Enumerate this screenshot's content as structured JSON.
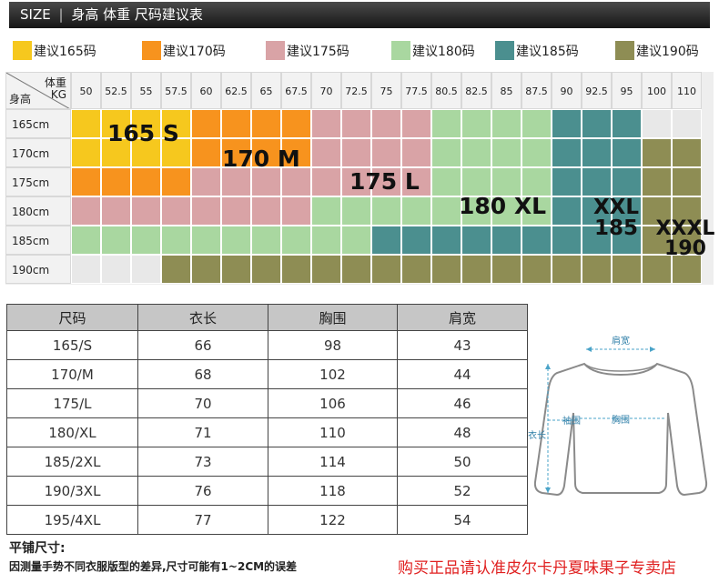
{
  "header": {
    "size_label": "SIZE",
    "separator": "|",
    "title": "身高 体重 尺码建议表"
  },
  "legend": [
    {
      "label": "建议165码",
      "color": "#f6c81e"
    },
    {
      "label": "建议170码",
      "color": "#f7931e"
    },
    {
      "label": "建议175码",
      "color": "#d9a3a6"
    },
    {
      "label": "建议180码",
      "color": "#a9d7a0"
    },
    {
      "label": "建议185码",
      "color": "#4b8f8f"
    },
    {
      "label": "建议190码",
      "color": "#8e8d54"
    }
  ],
  "grid": {
    "corner_weight_label": "体重",
    "corner_weight_unit": "KG",
    "corner_height_label": "身高",
    "weights": [
      "50",
      "52.5",
      "55",
      "57.5",
      "60",
      "62.5",
      "65",
      "67.5",
      "70",
      "72.5",
      "75",
      "77.5",
      "80.5",
      "82.5",
      "85",
      "87.5",
      "90",
      "92.5",
      "95",
      "100",
      "110"
    ],
    "heights": [
      "165cm",
      "170cm",
      "175cm",
      "180cm",
      "185cm",
      "190cm"
    ],
    "empty_color": "#e8e8e8",
    "rows": [
      [
        "165",
        "165",
        "165",
        "165",
        "170",
        "170",
        "170",
        "170",
        "175",
        "175",
        "175",
        "175",
        "180",
        "180",
        "180",
        "180",
        "185",
        "185",
        "185",
        "e",
        "e"
      ],
      [
        "165",
        "165",
        "165",
        "165",
        "170",
        "170",
        "170",
        "170",
        "175",
        "175",
        "175",
        "175",
        "180",
        "180",
        "180",
        "180",
        "185",
        "185",
        "185",
        "190",
        "190"
      ],
      [
        "170",
        "170",
        "170",
        "170",
        "175",
        "175",
        "175",
        "175",
        "175",
        "175",
        "175",
        "175",
        "180",
        "180",
        "180",
        "180",
        "185",
        "185",
        "185",
        "190",
        "190"
      ],
      [
        "175",
        "175",
        "175",
        "175",
        "175",
        "175",
        "175",
        "175",
        "180",
        "180",
        "180",
        "180",
        "180",
        "180",
        "180",
        "180",
        "185",
        "185",
        "185",
        "190",
        "190"
      ],
      [
        "180",
        "180",
        "180",
        "180",
        "180",
        "180",
        "180",
        "180",
        "180",
        "180",
        "185",
        "185",
        "185",
        "185",
        "185",
        "185",
        "185",
        "185",
        "185",
        "190",
        "190"
      ],
      [
        "e",
        "e",
        "e",
        "190",
        "190",
        "190",
        "190",
        "190",
        "190",
        "190",
        "190",
        "190",
        "190",
        "190",
        "190",
        "190",
        "190",
        "190",
        "190",
        "190",
        "190"
      ]
    ],
    "zones": [
      {
        "text": "165 S"
      },
      {
        "text": "170 M"
      },
      {
        "text": "175 L"
      },
      {
        "text": "180 XL"
      },
      {
        "text": "XXL 185"
      },
      {
        "text": "XXXL 190"
      }
    ]
  },
  "table": {
    "headers": [
      "尺码",
      "衣长",
      "胸围",
      "肩宽"
    ],
    "rows": [
      [
        "165/S",
        "66",
        "98",
        "43"
      ],
      [
        "170/M",
        "68",
        "102",
        "44"
      ],
      [
        "175/L",
        "70",
        "106",
        "46"
      ],
      [
        "180/XL",
        "71",
        "110",
        "48"
      ],
      [
        "185/2XL",
        "73",
        "114",
        "50"
      ],
      [
        "190/3XL",
        "76",
        "118",
        "52"
      ],
      [
        "195/4XL",
        "77",
        "122",
        "54"
      ]
    ]
  },
  "diagram": {
    "shoulder": "肩宽",
    "length": "衣长",
    "sleeve": "袖围",
    "chest": "胸围"
  },
  "footer": {
    "title": "平铺尺寸:",
    "note": "因测量手势不同衣服版型的差异,尺寸可能有1~2CM的误差",
    "shop": "购买正品请认准皮尔卡丹夏味果子专卖店"
  }
}
